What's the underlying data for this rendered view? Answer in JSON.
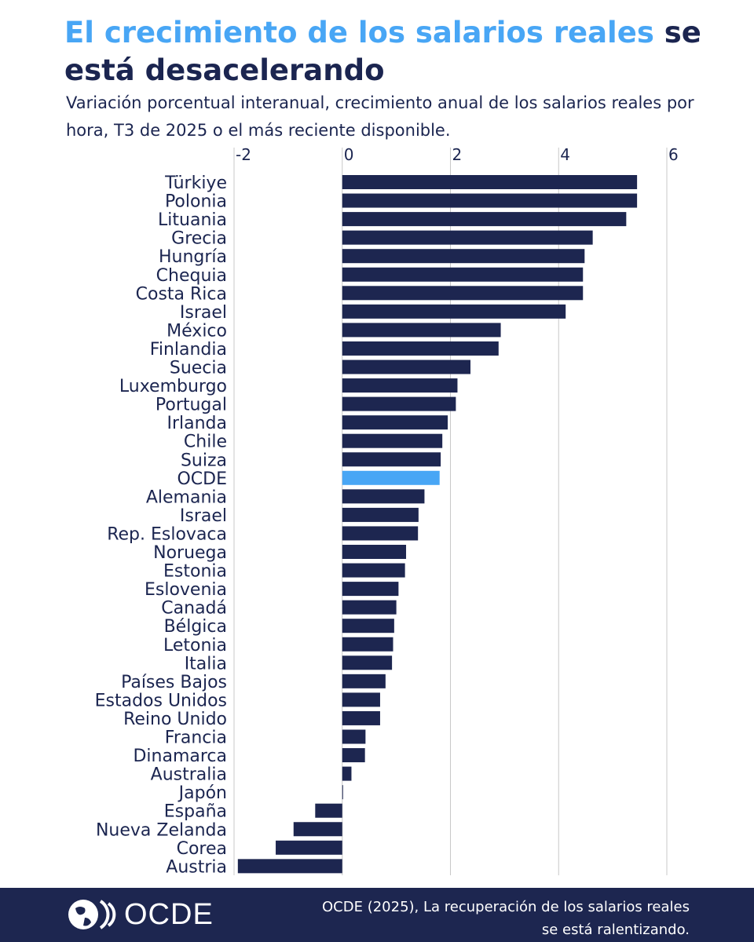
{
  "header": {
    "title_accent": "El crecimiento de los salarios reales",
    "title_rest": " se está desacelerando",
    "subtitle": "Variación porcentual interanual, crecimiento anual de los salarios reales por hora, T3 de 2025 o el más reciente disponible."
  },
  "chart_data": {
    "type": "bar",
    "orientation": "horizontal",
    "xlim": [
      -2,
      6
    ],
    "xticks": [
      -2,
      0,
      2,
      4,
      6
    ],
    "grid": true,
    "colors": {
      "default": "#1d2650",
      "highlight": "#48a6f5",
      "grid": "#c8c8c8"
    },
    "highlight": "OCDE",
    "categories": [
      "Türkiye",
      "Polonia",
      "Lituania",
      "Grecia",
      "Hungría",
      "Chequia",
      "Costa Rica",
      "Israel",
      "México",
      "Finlandia",
      "Suecia",
      "Luxemburgo",
      "Portugal",
      "Irlanda",
      "Chile",
      "Suiza",
      "OCDE",
      "Alemania",
      "Israel",
      "Rep. Eslovaca",
      "Noruega",
      "Estonia",
      "Eslovenia",
      "Canadá",
      "Bélgica",
      "Letonia",
      "Italia",
      "Países Bajos",
      "Estados Unidos",
      "Reino Unido",
      "Francia",
      "Dinamarca",
      "Australia",
      "Japón",
      "España",
      "Nueva Zelanda",
      "Corea",
      "Austria"
    ],
    "values": [
      5.45,
      5.45,
      5.25,
      4.63,
      4.48,
      4.45,
      4.45,
      4.13,
      2.93,
      2.89,
      2.37,
      2.13,
      2.1,
      1.95,
      1.85,
      1.82,
      1.8,
      1.52,
      1.41,
      1.4,
      1.18,
      1.16,
      1.04,
      1.0,
      0.96,
      0.94,
      0.92,
      0.8,
      0.7,
      0.7,
      0.43,
      0.42,
      0.17,
      0.01,
      -0.5,
      -0.9,
      -1.23,
      -1.93
    ]
  },
  "footer": {
    "logo_text": "OCDE",
    "source_line1": "OCDE (2025), La recuperación de los salarios reales",
    "source_line2": "se está ralentizando."
  }
}
